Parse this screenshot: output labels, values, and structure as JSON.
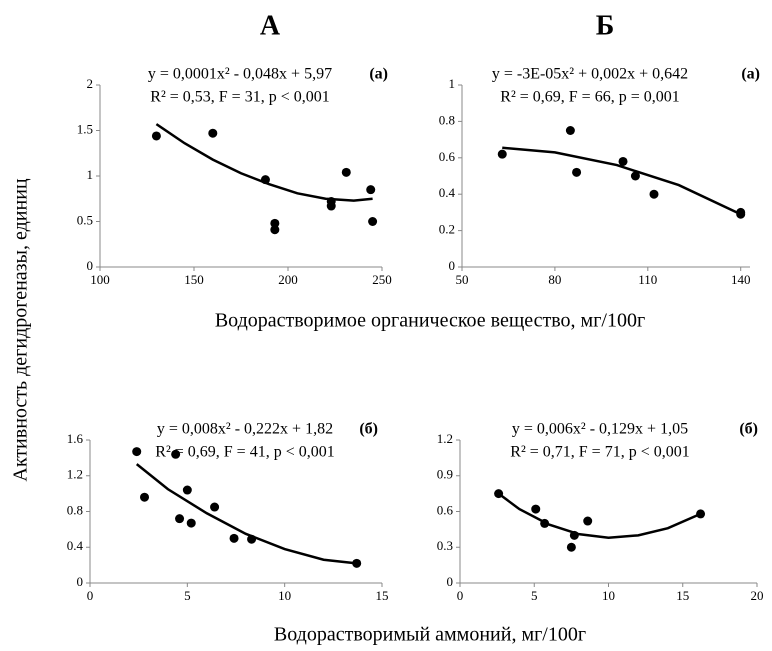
{
  "column_titles": [
    "А",
    "Б"
  ],
  "y_label": "Активность дегидрогеназы, единиц",
  "x_labels": [
    "Водорастворимое органическое вещество, мг/100г",
    "Водорастворимый аммоний, мг/100г"
  ],
  "chart_data": [
    {
      "type": "scatter",
      "panel_label": "(а)",
      "annotations": [
        "y = 0,0001x² - 0,048x + 5,97",
        "R² = 0,53, F = 31, p < 0,001"
      ],
      "xlim": [
        100,
        250
      ],
      "xticks": [
        100,
        150,
        200,
        250
      ],
      "ylim": [
        0,
        2
      ],
      "yticks": [
        0,
        0.5,
        1,
        1.5,
        2
      ],
      "grid": false,
      "series": [
        {
          "type": "scatter",
          "color": "#000000",
          "x": [
            130,
            160,
            188,
            193,
            193,
            223,
            223,
            231,
            244,
            245
          ],
          "values": [
            1.44,
            1.47,
            0.96,
            0.48,
            0.41,
            0.72,
            0.67,
            1.04,
            0.85,
            0.5
          ]
        },
        {
          "type": "line",
          "color": "#000000",
          "x": [
            130,
            145,
            160,
            175,
            190,
            205,
            220,
            235,
            245
          ],
          "values": [
            1.57,
            1.36,
            1.18,
            1.03,
            0.91,
            0.81,
            0.75,
            0.73,
            0.75
          ]
        }
      ]
    },
    {
      "type": "scatter",
      "panel_label": "(а)",
      "annotations": [
        "y = -3E-05x² + 0,002x + 0,642",
        "R² = 0,69, F = 66, p = 0,001"
      ],
      "xlim": [
        50,
        143
      ],
      "xticks": [
        50,
        80,
        110,
        140
      ],
      "ylim": [
        0,
        1
      ],
      "yticks": [
        0,
        0.2,
        0.4,
        0.6,
        0.8,
        1
      ],
      "grid": false,
      "series": [
        {
          "type": "scatter",
          "color": "#000000",
          "x": [
            63,
            85,
            87,
            102,
            106,
            112,
            140,
            140
          ],
          "values": [
            0.62,
            0.75,
            0.52,
            0.58,
            0.5,
            0.4,
            0.3,
            0.29
          ]
        },
        {
          "type": "line",
          "color": "#000000",
          "x": [
            63,
            80,
            100,
            120,
            140
          ],
          "values": [
            0.655,
            0.63,
            0.56,
            0.45,
            0.29
          ]
        }
      ]
    },
    {
      "type": "scatter",
      "panel_label": "(б)",
      "annotations": [
        "y = 0,008x² - 0,222x + 1,82",
        "R² = 0,69, F = 41, p < 0,001"
      ],
      "xlim": [
        0,
        15
      ],
      "xticks": [
        0,
        5,
        10,
        15
      ],
      "ylim": [
        0,
        1.6
      ],
      "yticks": [
        0,
        0.4,
        0.8,
        1.2,
        1.6
      ],
      "grid": false,
      "series": [
        {
          "type": "scatter",
          "color": "#000000",
          "x": [
            2.4,
            2.8,
            4.4,
            4.6,
            5.0,
            5.2,
            6.4,
            7.4,
            8.3,
            13.7
          ],
          "values": [
            1.47,
            0.96,
            1.44,
            0.72,
            1.04,
            0.67,
            0.85,
            0.5,
            0.49,
            0.22
          ]
        },
        {
          "type": "line",
          "color": "#000000",
          "x": [
            2.4,
            4,
            6,
            8,
            10,
            12,
            13.7
          ],
          "values": [
            1.33,
            1.05,
            0.78,
            0.55,
            0.38,
            0.26,
            0.22
          ]
        }
      ]
    },
    {
      "type": "scatter",
      "panel_label": "(б)",
      "annotations": [
        "y = 0,006x² - 0,129x + 1,05",
        "R² = 0,71, F = 71, p < 0,001"
      ],
      "xlim": [
        0,
        20
      ],
      "xticks": [
        0,
        5,
        10,
        15,
        20
      ],
      "ylim": [
        0,
        1.2
      ],
      "yticks": [
        0,
        0.3,
        0.6,
        0.9,
        1.2
      ],
      "grid": false,
      "series": [
        {
          "type": "scatter",
          "color": "#000000",
          "x": [
            2.6,
            5.1,
            5.7,
            7.5,
            7.7,
            8.6,
            16.2
          ],
          "values": [
            0.75,
            0.62,
            0.5,
            0.3,
            0.4,
            0.52,
            0.58
          ]
        },
        {
          "type": "line",
          "color": "#000000",
          "x": [
            2.6,
            4,
            6,
            8,
            10,
            12,
            14,
            16.2
          ],
          "values": [
            0.75,
            0.62,
            0.49,
            0.41,
            0.38,
            0.4,
            0.46,
            0.58
          ]
        }
      ]
    }
  ]
}
